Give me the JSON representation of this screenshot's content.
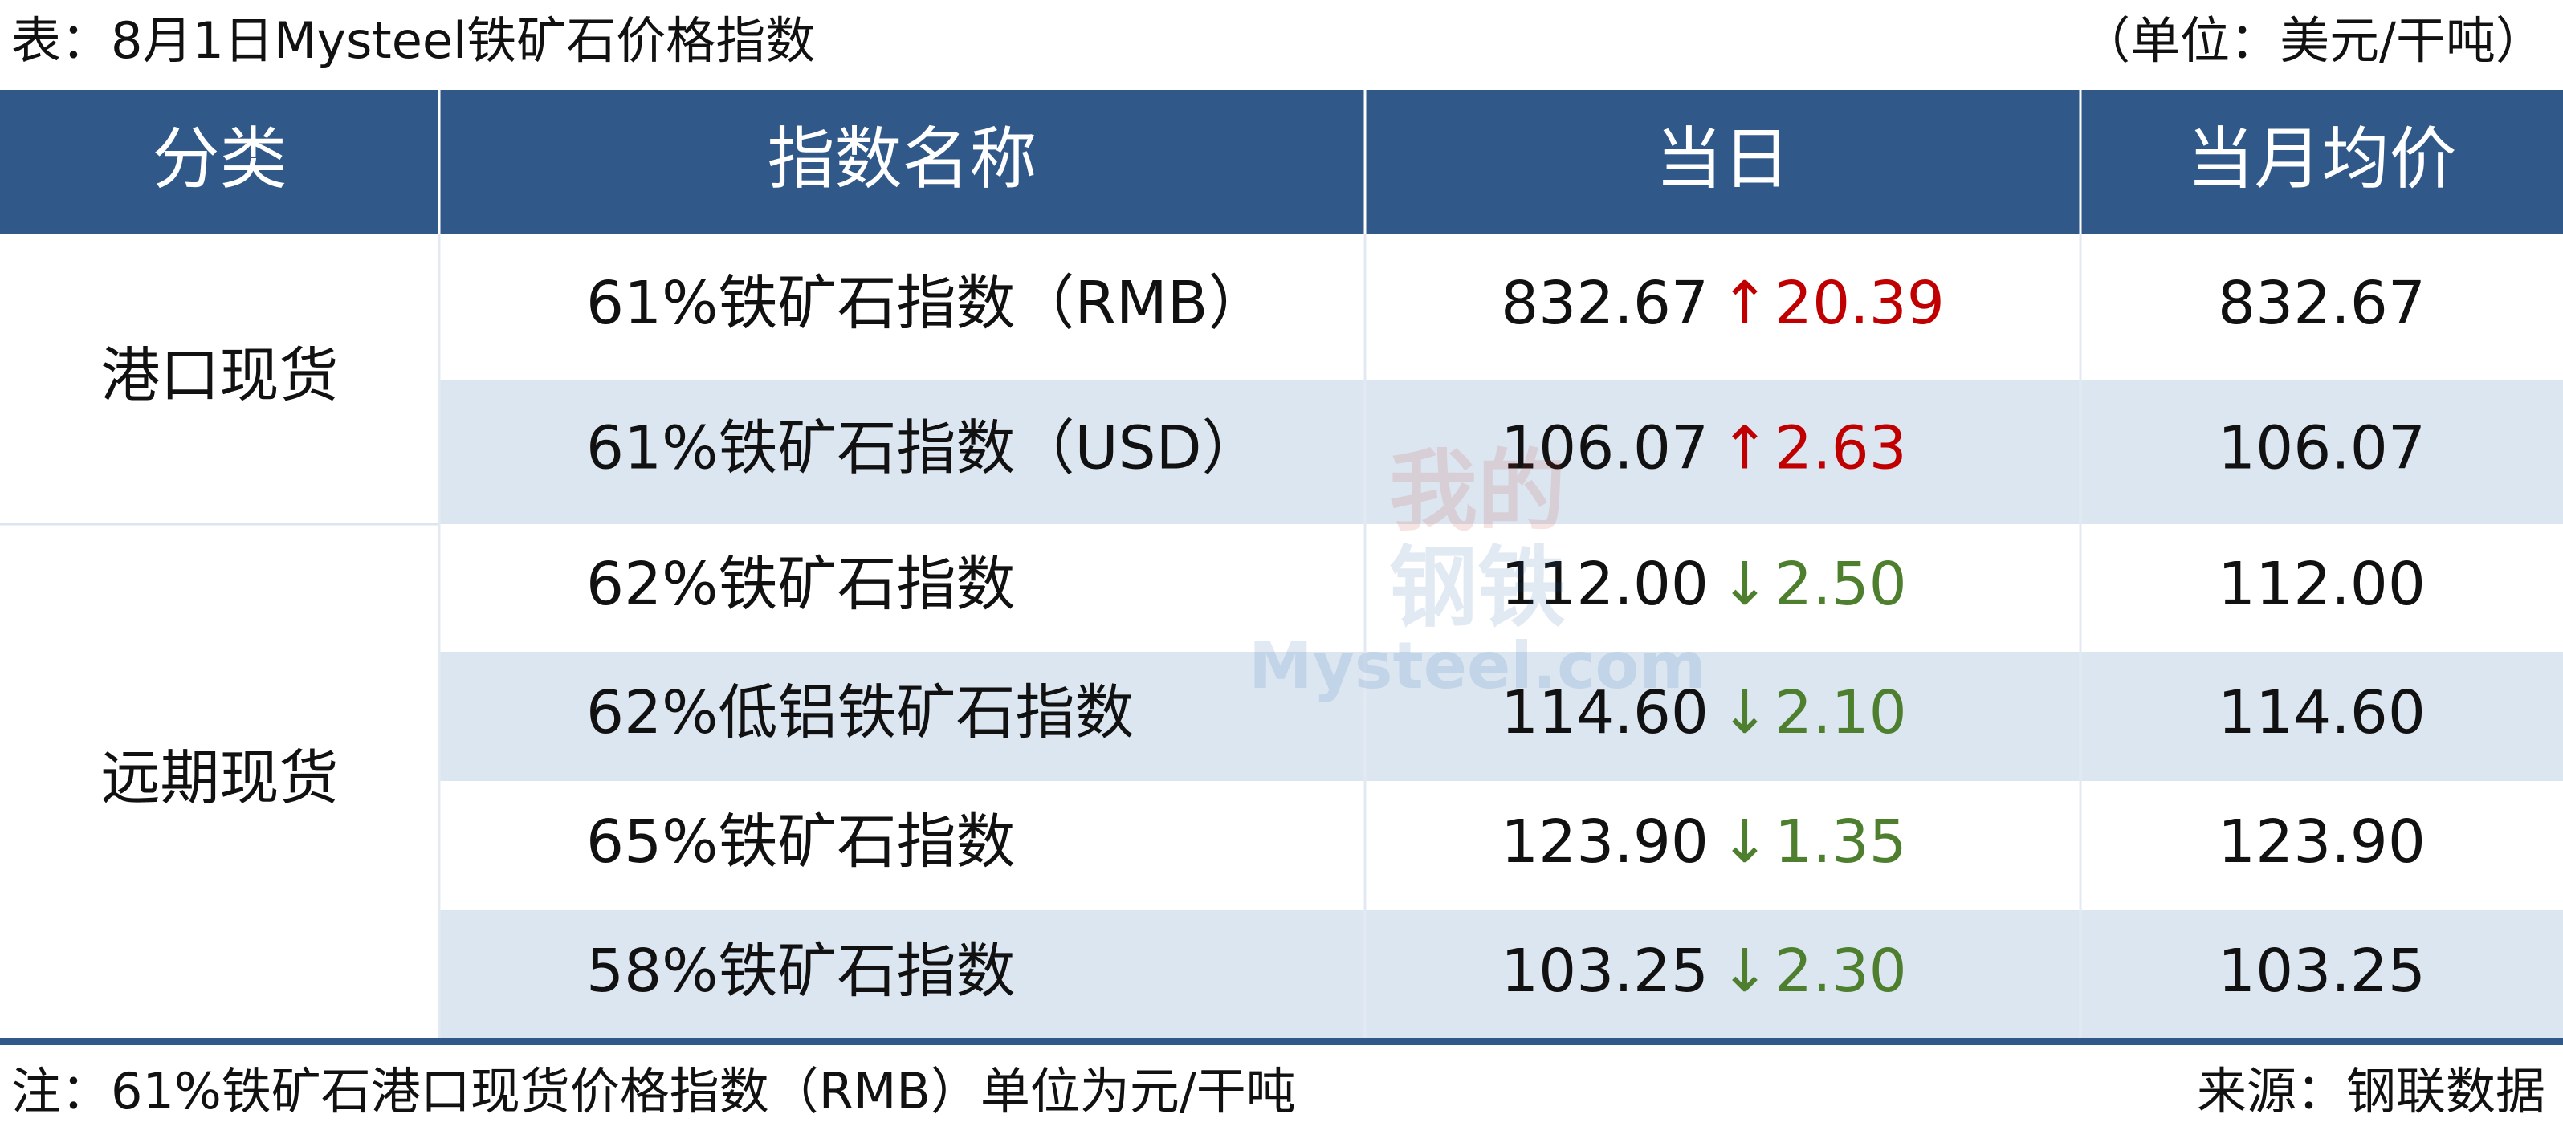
{
  "header": {
    "title": "表：8月1日Mysteel铁矿石价格指数",
    "unit": "（单位：美元/干吨）"
  },
  "table": {
    "columns": [
      "分类",
      "指数名称",
      "当日",
      "当月均价"
    ],
    "groups": [
      {
        "label": "港口现货",
        "rows": [
          {
            "name": "61%铁矿石指数（RMB）",
            "current": "832.67",
            "arrow": "↑",
            "change": "20.39",
            "direction": "up",
            "average": "832.67"
          },
          {
            "name": "61%铁矿石指数（USD）",
            "current": "106.07",
            "arrow": "↑",
            "change": "2.63",
            "direction": "up",
            "average": "106.07"
          }
        ]
      },
      {
        "label": "远期现货",
        "rows": [
          {
            "name": "62%铁矿石指数",
            "current": "112.00",
            "arrow": "↓",
            "change": "2.50",
            "direction": "down",
            "average": "112.00"
          },
          {
            "name": "62%低铝铁矿石指数",
            "current": "114.60",
            "arrow": "↓",
            "change": "2.10",
            "direction": "down",
            "average": "114.60"
          },
          {
            "name": "65%铁矿石指数",
            "current": "123.90",
            "arrow": "↓",
            "change": "1.35",
            "direction": "down",
            "average": "123.90"
          },
          {
            "name": "58%铁矿石指数",
            "current": "103.25",
            "arrow": "↓",
            "change": "2.30",
            "direction": "down",
            "average": "103.25"
          }
        ]
      }
    ]
  },
  "watermark": {
    "line1": "我的",
    "line2": "钢铁",
    "line3": "Mysteel.com"
  },
  "footer": {
    "note": "注：61%铁矿石港口现货价格指数（RMB）单位为元/干吨",
    "source": "来源：钢联数据"
  }
}
